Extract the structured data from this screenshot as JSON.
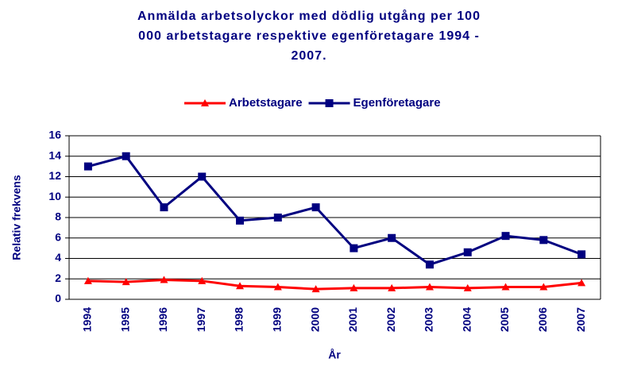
{
  "chart_data": {
    "type": "line",
    "title": [
      "Anmälda arbetsolyckor med dödlig utgång per 100",
      "000 arbetstagare respektive egenföretagare 1994 -",
      "2007."
    ],
    "x_label": "År",
    "y_label": "Relativ frekvens",
    "categories": [
      "1994",
      "1995",
      "1996",
      "1997",
      "1998",
      "1999",
      "2000",
      "2001",
      "2002",
      "2003",
      "2004",
      "2005",
      "2006",
      "2007"
    ],
    "series": [
      {
        "name": "Arbetstagare",
        "color": "#ff0000",
        "marker": "triangle",
        "values": [
          1.8,
          1.7,
          1.9,
          1.8,
          1.3,
          1.2,
          1.0,
          1.1,
          1.1,
          1.2,
          1.1,
          1.2,
          1.2,
          1.6
        ]
      },
      {
        "name": "Egenföretagare",
        "color": "#000080",
        "marker": "square",
        "values": [
          13,
          14,
          9,
          12,
          7.7,
          8,
          9,
          5,
          6,
          3.4,
          4.6,
          6.2,
          5.8,
          4.4
        ]
      }
    ],
    "ylim": [
      0,
      16
    ],
    "yticks": [
      0,
      2,
      4,
      6,
      8,
      10,
      12,
      14,
      16
    ],
    "grid": true,
    "legend": "top"
  }
}
